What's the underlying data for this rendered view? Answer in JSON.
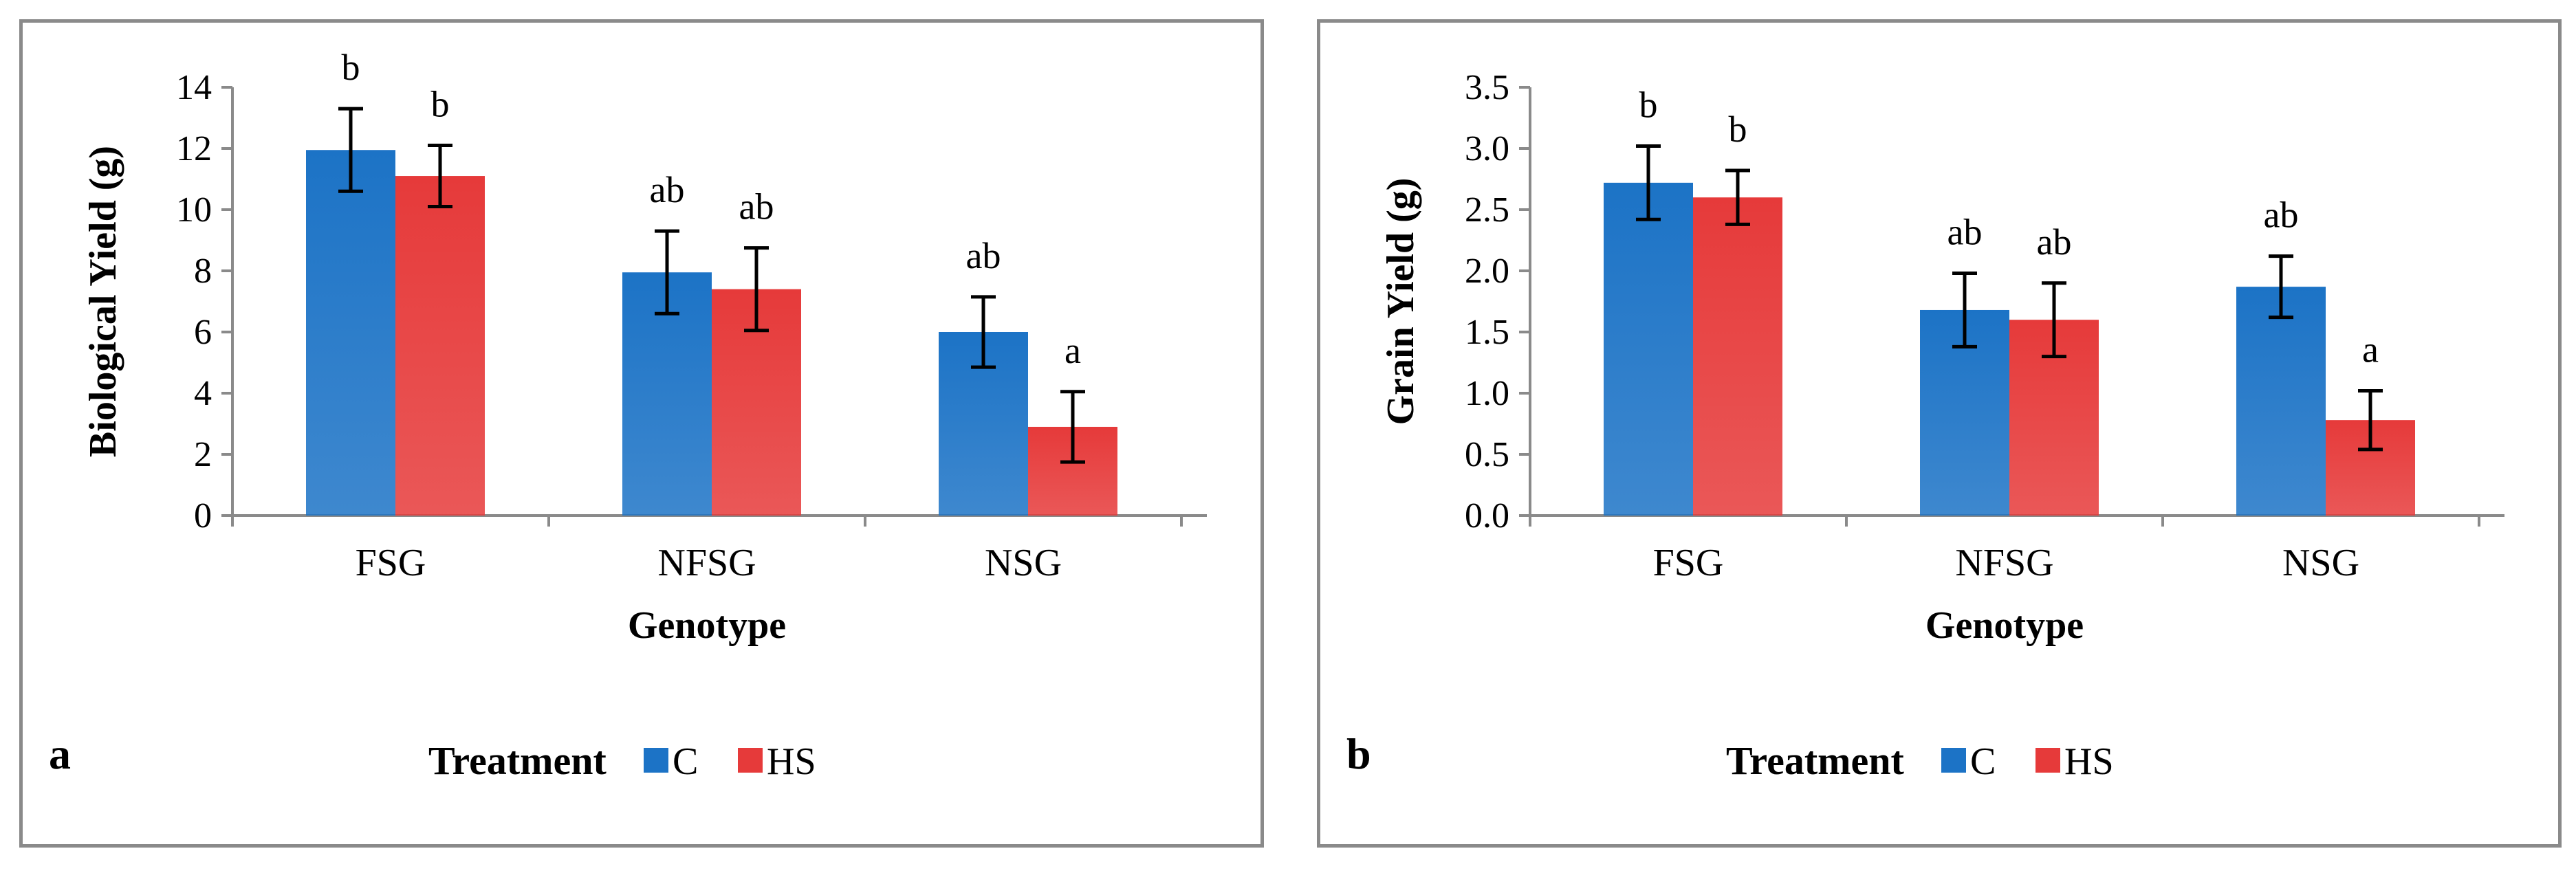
{
  "colors": {
    "C": "#1c73c6",
    "HS": "#e63a3a",
    "axis": "#8a8a8a",
    "error": "#000000"
  },
  "chart_data": [
    {
      "type": "bar",
      "panel_label": "a",
      "categories": [
        "FSG",
        "NFSG",
        "NSG"
      ],
      "series": [
        {
          "name": "C",
          "values": [
            11.95,
            7.95,
            6.0
          ],
          "errors": [
            1.35,
            1.35,
            1.15
          ],
          "significance": [
            "b",
            "ab",
            "ab"
          ]
        },
        {
          "name": "HS",
          "values": [
            11.1,
            7.4,
            2.9
          ],
          "errors": [
            1.0,
            1.35,
            1.15
          ],
          "significance": [
            "b",
            "ab",
            "a"
          ]
        }
      ],
      "xlabel": "Genotype",
      "ylabel": "Biological Yield (g)",
      "ylim": [
        0,
        14
      ],
      "yticks": [
        0,
        2,
        4,
        6,
        8,
        10,
        12,
        14
      ],
      "ytick_labels": [
        "0",
        "2",
        "4",
        "6",
        "8",
        "10",
        "12",
        "14"
      ],
      "legend_title": "Treatment",
      "legend_position": "bottom"
    },
    {
      "type": "bar",
      "panel_label": "b",
      "categories": [
        "FSG",
        "NFSG",
        "NSG"
      ],
      "series": [
        {
          "name": "C",
          "values": [
            2.72,
            1.68,
            1.87
          ],
          "errors": [
            0.3,
            0.3,
            0.25
          ],
          "significance": [
            "b",
            "ab",
            "ab"
          ]
        },
        {
          "name": "HS",
          "values": [
            2.6,
            1.6,
            0.78
          ],
          "errors": [
            0.22,
            0.3,
            0.24
          ],
          "significance": [
            "b",
            "ab",
            "a"
          ]
        }
      ],
      "xlabel": "Genotype",
      "ylabel": "Grain Yield (g)",
      "ylim": [
        0,
        3.5
      ],
      "yticks": [
        0,
        0.5,
        1,
        1.5,
        2,
        2.5,
        3,
        3.5
      ],
      "ytick_labels": [
        "0.0",
        "0.5",
        "1.0",
        "1.5",
        "2.0",
        "2.5",
        "3.0",
        "3.5"
      ],
      "legend_title": "Treatment",
      "legend_position": "bottom"
    }
  ]
}
